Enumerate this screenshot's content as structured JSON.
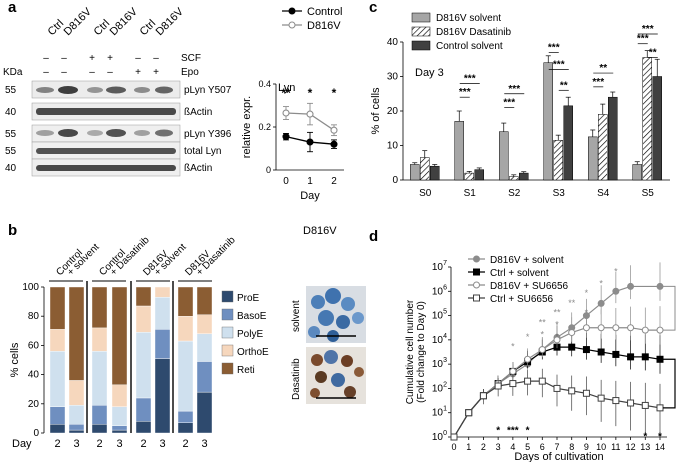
{
  "panels": {
    "a": {
      "label": "a",
      "lanes": [
        "Ctrl",
        "D816V",
        "Ctrl",
        "D816V",
        "Ctrl",
        "D816V"
      ],
      "treatments": [
        {
          "name": "SCF",
          "signs": [
            "–",
            "–",
            "+",
            "+",
            "–",
            "–"
          ]
        },
        {
          "name": "Epo",
          "signs": [
            "–",
            "–",
            "–",
            "–",
            "+",
            "+"
          ]
        }
      ],
      "kda_label": "KDa",
      "blots": [
        {
          "kda": "55",
          "name": "pLyn Y507"
        },
        {
          "kda": "40",
          "name": "ßActin"
        },
        {
          "kda": "55",
          "name": "pLyn Y396"
        },
        {
          "kda": "55",
          "name": "total Lyn"
        },
        {
          "kda": "40",
          "name": "ßActin"
        }
      ]
    },
    "b": {
      "label": "b",
      "groups": [
        "Control\n+ solvent",
        "Control\n+ Dasatinib",
        "D816V\n+ solvent",
        "D816V\n+ Dasatinib"
      ],
      "day_label": "Day",
      "micro_title": "D816V",
      "micro_labels": [
        "solvent",
        "Dasatinib"
      ]
    },
    "c": {
      "label": "c"
    },
    "d": {
      "label": "d"
    }
  },
  "chart_data": [
    {
      "id": "lyn",
      "type": "line",
      "title": "Lyn",
      "xlabel": "Day",
      "ylabel": "relative expr.",
      "x": [
        0,
        1,
        2
      ],
      "ylim": [
        0,
        0.4
      ],
      "yticks": [
        "0",
        "0.2",
        "0.4"
      ],
      "series": [
        {
          "name": "Control",
          "values": [
            0.155,
            0.13,
            0.12
          ],
          "err": [
            0.015,
            0.045,
            0.02
          ],
          "color": "#000000",
          "marker": "filled"
        },
        {
          "name": "D816V",
          "values": [
            0.265,
            0.26,
            0.185
          ],
          "err": [
            0.03,
            0.05,
            0.025
          ],
          "color": "#8c8c8c",
          "marker": "open"
        }
      ],
      "annotations": [
        "**",
        "*",
        "*"
      ]
    },
    {
      "id": "cell-stages",
      "type": "bar",
      "stacked": true,
      "ylabel": "% cells",
      "ylim": [
        0,
        100
      ],
      "yticks": [
        "0",
        "20",
        "40",
        "60",
        "80",
        "100"
      ],
      "categories": [
        "2",
        "3",
        "2",
        "3",
        "2",
        "3",
        "2",
        "3"
      ],
      "series": [
        {
          "name": "ProE",
          "color": "#2e4a6e",
          "values": [
            6,
            2,
            6,
            2,
            8,
            51,
            7,
            28
          ]
        },
        {
          "name": "BasoE",
          "color": "#6f8fc0",
          "values": [
            12,
            4,
            13,
            3,
            16,
            20,
            8,
            21
          ]
        },
        {
          "name": "PolyE",
          "color": "#cfe0ee",
          "values": [
            38,
            13,
            37,
            13,
            45,
            22,
            48,
            19
          ]
        },
        {
          "name": "OrthoE",
          "color": "#f6d7bd",
          "values": [
            15,
            17,
            16,
            15,
            18,
            7,
            17,
            13
          ]
        },
        {
          "name": "Reti",
          "color": "#8b5d33",
          "values": [
            29,
            64,
            28,
            67,
            13,
            0,
            20,
            19
          ]
        }
      ]
    },
    {
      "id": "subsets",
      "type": "bar",
      "title": "Day 3",
      "ylabel": "% of cells",
      "ylim": [
        0,
        40
      ],
      "yticks": [
        "0",
        "10",
        "20",
        "30",
        "40"
      ],
      "categories": [
        "S0",
        "S1",
        "S2",
        "S3",
        "S4",
        "S5"
      ],
      "series": [
        {
          "name": "D816V solvent",
          "color": "#a6a6a6",
          "values": [
            4.5,
            17,
            14,
            34,
            12.5,
            4.5
          ],
          "err": [
            0.5,
            3,
            2.5,
            2,
            2,
            0.8
          ]
        },
        {
          "name": "D816V Dasatinib",
          "color": "hatch",
          "values": [
            6.5,
            2,
            1,
            11.5,
            19,
            35.5
          ],
          "err": [
            2,
            0.5,
            0.5,
            1.5,
            3,
            2
          ]
        },
        {
          "name": "Control solvent",
          "color": "#404040",
          "values": [
            4,
            3,
            2,
            21.5,
            24,
            30
          ],
          "err": [
            0.5,
            0.5,
            0.4,
            2.5,
            1.5,
            5
          ]
        }
      ],
      "annotations": [
        "***",
        "***",
        "***",
        "***",
        "***",
        "***",
        "**",
        "***",
        "**",
        "***",
        "***",
        "**"
      ]
    },
    {
      "id": "growth",
      "type": "line",
      "xlabel": "Days of cultivation",
      "ylabel": "Cumulative cell number\n(Fold change to Day 0)",
      "yscale": "log",
      "ylim": [
        0,
        7
      ],
      "ytick_exponents": [
        0,
        1,
        2,
        3,
        4,
        5,
        6,
        7
      ],
      "x": [
        0,
        1,
        2,
        3,
        4,
        5,
        6,
        7,
        8,
        9,
        10,
        11,
        12,
        14
      ],
      "xticks": [
        "0",
        "1",
        "2",
        "3",
        "4",
        "5",
        "6",
        "7",
        "8",
        "9",
        "10",
        "11",
        "12",
        "13",
        "14"
      ],
      "series": [
        {
          "name": "D816V + solvent",
          "color": "#8c8c8c",
          "marker": "filled-circle",
          "x": [
            0,
            1,
            2,
            3,
            4,
            5,
            6,
            7,
            8,
            9,
            10,
            11,
            12,
            14
          ],
          "log10": [
            0,
            1,
            1.7,
            2.2,
            2.6,
            3.0,
            3.6,
            4.1,
            4.5,
            5.0,
            5.5,
            6.0,
            6.2,
            6.2
          ]
        },
        {
          "name": "Ctrl + solvent",
          "color": "#000000",
          "marker": "filled-square",
          "x": [
            0,
            1,
            2,
            3,
            4,
            5,
            6,
            7,
            8,
            9,
            10,
            11,
            12,
            13,
            14
          ],
          "log10": [
            0,
            1,
            1.7,
            2.2,
            2.7,
            3.1,
            3.5,
            3.7,
            3.7,
            3.6,
            3.5,
            3.4,
            3.3,
            3.3,
            3.2
          ]
        },
        {
          "name": "D816V + SU6656",
          "color": "#8c8c8c",
          "marker": "open-circle",
          "x": [
            0,
            1,
            2,
            3,
            4,
            5,
            6,
            7,
            8,
            9,
            10,
            11,
            12,
            13,
            14
          ],
          "log10": [
            0,
            1,
            1.7,
            2.2,
            2.7,
            3.2,
            3.6,
            4.0,
            4.3,
            4.5,
            4.5,
            4.5,
            4.5,
            4.4,
            4.4
          ]
        },
        {
          "name": "Ctrl + SU6656",
          "color": "#404040",
          "marker": "open-square",
          "x": [
            0,
            1,
            2,
            3,
            4,
            5,
            6,
            7,
            8,
            9,
            10,
            11,
            12,
            13,
            14
          ],
          "log10": [
            0,
            1,
            1.7,
            2.1,
            2.2,
            2.3,
            2.3,
            2.0,
            1.9,
            1.8,
            1.6,
            1.5,
            1.4,
            1.3,
            1.2
          ]
        }
      ],
      "annotations_grey": [
        "*",
        "*",
        "**",
        "**",
        "**",
        "*",
        "*",
        "*",
        "*",
        "*",
        "*"
      ],
      "annotations_black": [
        "*",
        "***",
        "*",
        "*",
        "*"
      ]
    }
  ]
}
